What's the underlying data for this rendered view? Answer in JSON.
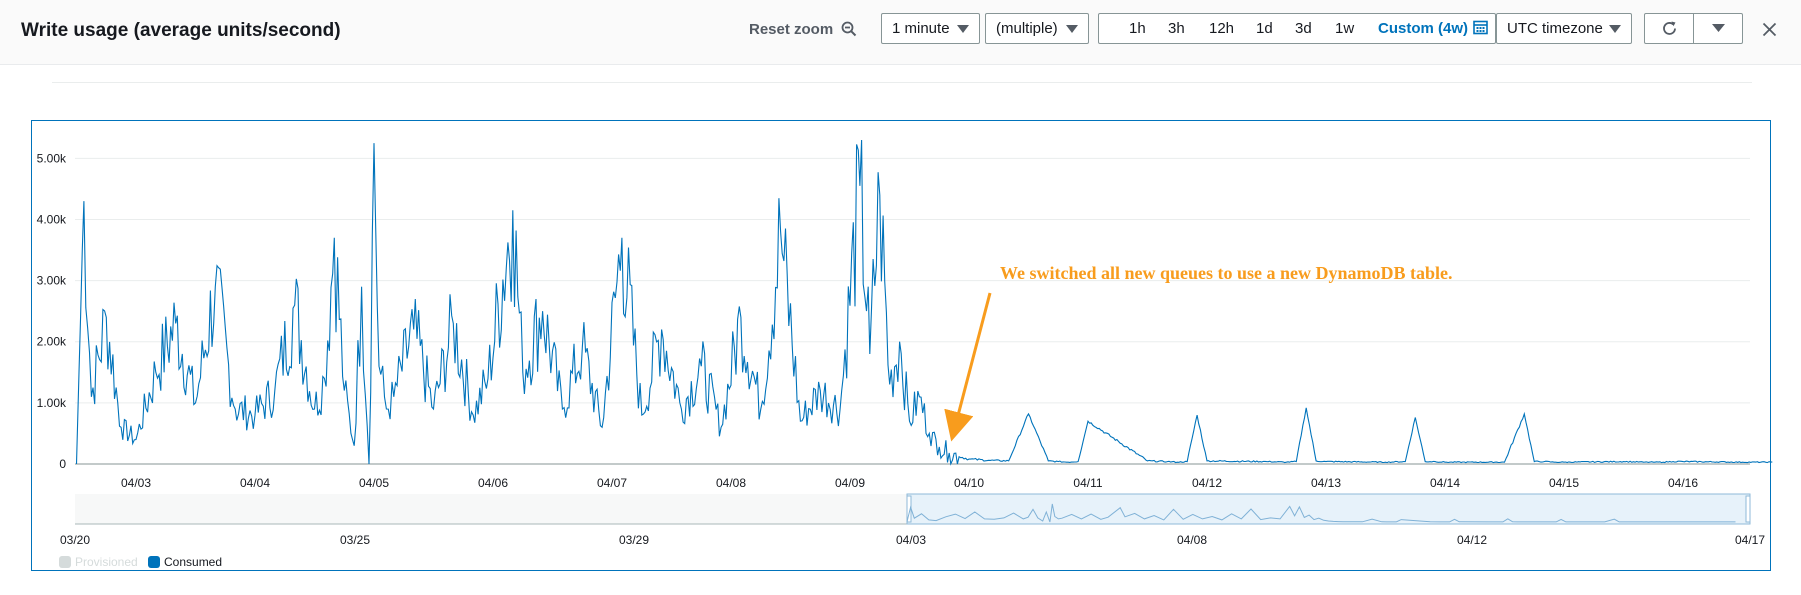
{
  "header": {
    "title": "Write usage (average units/second)",
    "reset_zoom_label": "Reset zoom",
    "period_value": "1 minute",
    "statistic_value": "(multiple)",
    "range_options": [
      "1h",
      "3h",
      "12h",
      "1d",
      "3d",
      "1w",
      "Custom (4w)"
    ],
    "selected_range": "Custom (4w)",
    "timezone_value": "UTC timezone"
  },
  "icons": {
    "zoom_out": "zoom-out-icon",
    "calendar": "calendar-icon",
    "refresh": "refresh-icon",
    "caret": "caret-down-icon",
    "close": "close-icon"
  },
  "colors": {
    "consumed": "#0073bb",
    "provisioned": "#d5dbdb",
    "annotation": "#f89c1d",
    "selected_link": "#0073bb"
  },
  "annotation": {
    "text": "We switched all new queues to use a new DynamoDB table."
  },
  "legend": [
    {
      "label": "Provisioned",
      "color": "#d5dbdb",
      "active": false
    },
    {
      "label": "Consumed",
      "color": "#0073bb",
      "active": true
    }
  ],
  "chart_data": {
    "type": "line",
    "title": "Write usage (average units/second)",
    "ylabel": "",
    "xlabel": "",
    "ylim": [
      0,
      5300
    ],
    "y_ticks": [
      0,
      1000,
      2000,
      3000,
      4000,
      5000
    ],
    "y_tick_labels": [
      "0",
      "1.00k",
      "2.00k",
      "3.00k",
      "4.00k",
      "5.00k"
    ],
    "x_range_days": [
      "04/02 12:00",
      "04/16 18:00"
    ],
    "x_tick_labels": [
      "04/03",
      "04/04",
      "04/05",
      "04/06",
      "04/07",
      "04/08",
      "04/09",
      "04/10",
      "04/11",
      "04/12",
      "04/13",
      "04/14",
      "04/15",
      "04/16"
    ],
    "legend_position": "bottom-left",
    "grid": true,
    "series": [
      {
        "name": "Provisioned",
        "visible": false,
        "values": []
      },
      {
        "name": "Consumed",
        "visible": true,
        "x": [
          "04/02 12:00",
          "04/02 12:30",
          "04/02 13:30",
          "04/02 15:00",
          "04/02 18:00",
          "04/02 21:00",
          "04/03 00:00",
          "04/03 04:00",
          "04/03 08:00",
          "04/03 12:00",
          "04/03 16:00",
          "04/03 20:00",
          "04/04 00:00",
          "04/04 04:00",
          "04/04 08:00",
          "04/04 12:00",
          "04/04 14:00",
          "04/04 16:00",
          "04/04 18:00",
          "04/04 20:00",
          "04/04 21:30",
          "04/04 23:00",
          "04/05 00:00",
          "04/05 01:00",
          "04/05 02:30",
          "04/05 04:00",
          "04/05 08:00",
          "04/05 12:00",
          "04/05 16:00",
          "04/05 20:00",
          "04/05 23:00",
          "04/06 04:00",
          "04/06 06:00",
          "04/06 10:00",
          "04/06 14:00",
          "04/06 18:00",
          "04/06 22:00",
          "04/07 02:00",
          "04/07 06:00",
          "04/07 10:00",
          "04/07 14:00",
          "04/07 18:00",
          "04/07 22:00",
          "04/08 02:00",
          "04/08 06:00",
          "04/08 10:00",
          "04/08 14:00",
          "04/08 18:00",
          "04/08 22:00",
          "04/09 02:00",
          "04/09 04:00",
          "04/09 06:00",
          "04/09 08:00",
          "04/09 10:00",
          "04/09 12:00",
          "04/09 14:00",
          "04/09 16:00",
          "04/09 18:00",
          "04/09 20:00",
          "04/09 22:00",
          "04/10 00:00",
          "04/10 04:00",
          "04/10 08:00",
          "04/10 12:00",
          "04/10 16:00",
          "04/10 18:00",
          "04/10 20:00",
          "04/10 22:00",
          "04/11 00:00",
          "04/11 12:00",
          "04/11 16:00",
          "04/11 18:00",
          "04/11 20:00",
          "04/11 22:00",
          "04/12 00:00",
          "04/12 12:00",
          "04/12 16:00",
          "04/12 18:00",
          "04/12 20:00",
          "04/12 22:00",
          "04/13 00:00",
          "04/13 12:00",
          "04/13 16:00",
          "04/13 18:00",
          "04/13 20:00",
          "04/13 22:00",
          "04/14 00:00",
          "04/14 12:00",
          "04/14 16:00",
          "04/14 18:00",
          "04/14 20:00",
          "04/14 22:00",
          "04/15 00:00",
          "04/15 12:00",
          "04/15 16:00",
          "04/15 18:00",
          "04/15 20:00",
          "04/15 22:00",
          "04/16 00:00",
          "04/16 12:00",
          "04/16 18:00"
        ],
        "values": [
          0,
          1500,
          4300,
          1100,
          2400,
          600,
          400,
          1500,
          2300,
          1000,
          2900,
          900,
          800,
          1200,
          2600,
          900,
          1400,
          3700,
          1200,
          300,
          2900,
          0,
          5250,
          1600,
          900,
          1100,
          2200,
          900,
          2300,
          800,
          1400,
          4150,
          1500,
          2500,
          900,
          1900,
          600,
          3700,
          800,
          2200,
          900,
          1600,
          600,
          2400,
          900,
          3800,
          700,
          1200,
          900,
          4550,
          1800,
          4400,
          1300,
          2000,
          700,
          1100,
          500,
          280,
          180,
          120,
          80,
          60,
          50,
          820,
          50,
          40,
          30,
          40,
          700,
          50,
          40,
          30,
          40,
          800,
          50,
          40,
          30,
          40,
          920,
          50,
          40,
          30,
          40,
          760,
          40,
          40,
          30,
          30,
          820,
          40,
          40,
          30,
          30,
          40,
          30,
          30,
          30,
          40,
          40,
          30,
          30
        ]
      }
    ],
    "navigator": {
      "x_tick_labels": [
        "03/20",
        "03/25",
        "03/29",
        "04/03",
        "04/08",
        "04/12",
        "04/17"
      ],
      "selected_range": [
        "04/03",
        "04/17"
      ]
    }
  }
}
